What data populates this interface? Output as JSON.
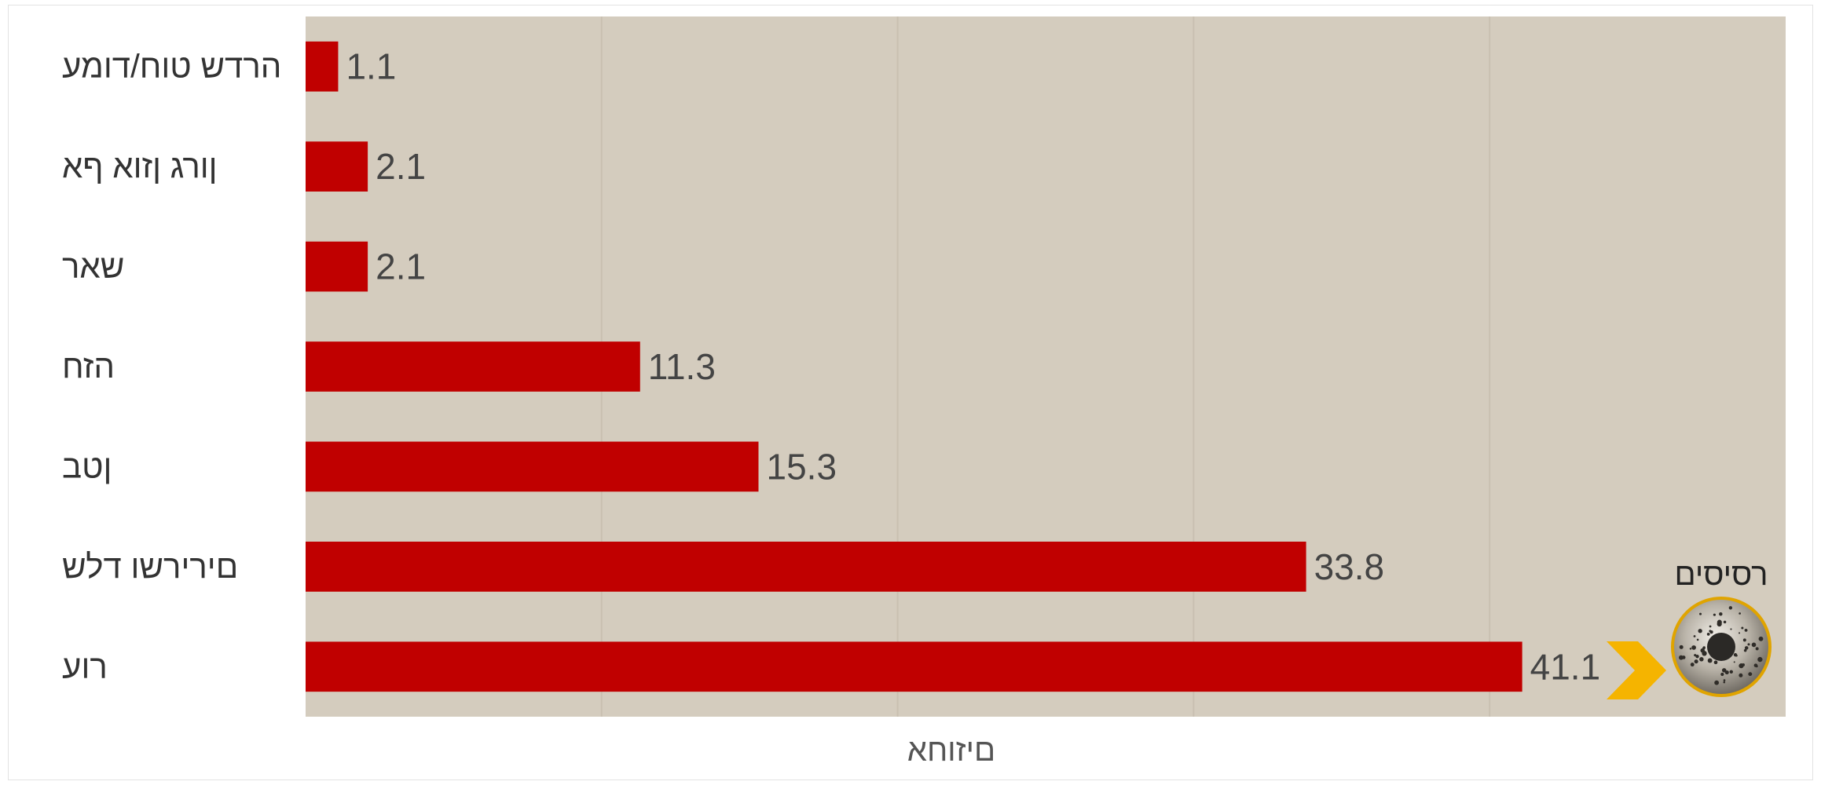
{
  "chart_data": {
    "type": "bar",
    "orientation": "horizontal",
    "categories": [
      "רוע",
      "םירירשו דלש",
      "ןטב",
      "הזח",
      "שאר",
      "ןורג ןזוא ףא",
      "הרדש טוח/דומע"
    ],
    "values": [
      41.1,
      33.8,
      15.3,
      11.3,
      2.1,
      2.1,
      1.1
    ],
    "title": "",
    "xlabel": "םיזוחא",
    "ylabel": "",
    "xlim": [
      0,
      50
    ],
    "grid": true,
    "legend": "none",
    "bar_color": "#c00000",
    "plot_background": "#d4ccbe"
  },
  "brand": {
    "label": "רסיסים",
    "icon": "shrapnel-ball-icon",
    "arrow_icon": "chevron-right-icon",
    "arrow_color": "#f5b400"
  }
}
